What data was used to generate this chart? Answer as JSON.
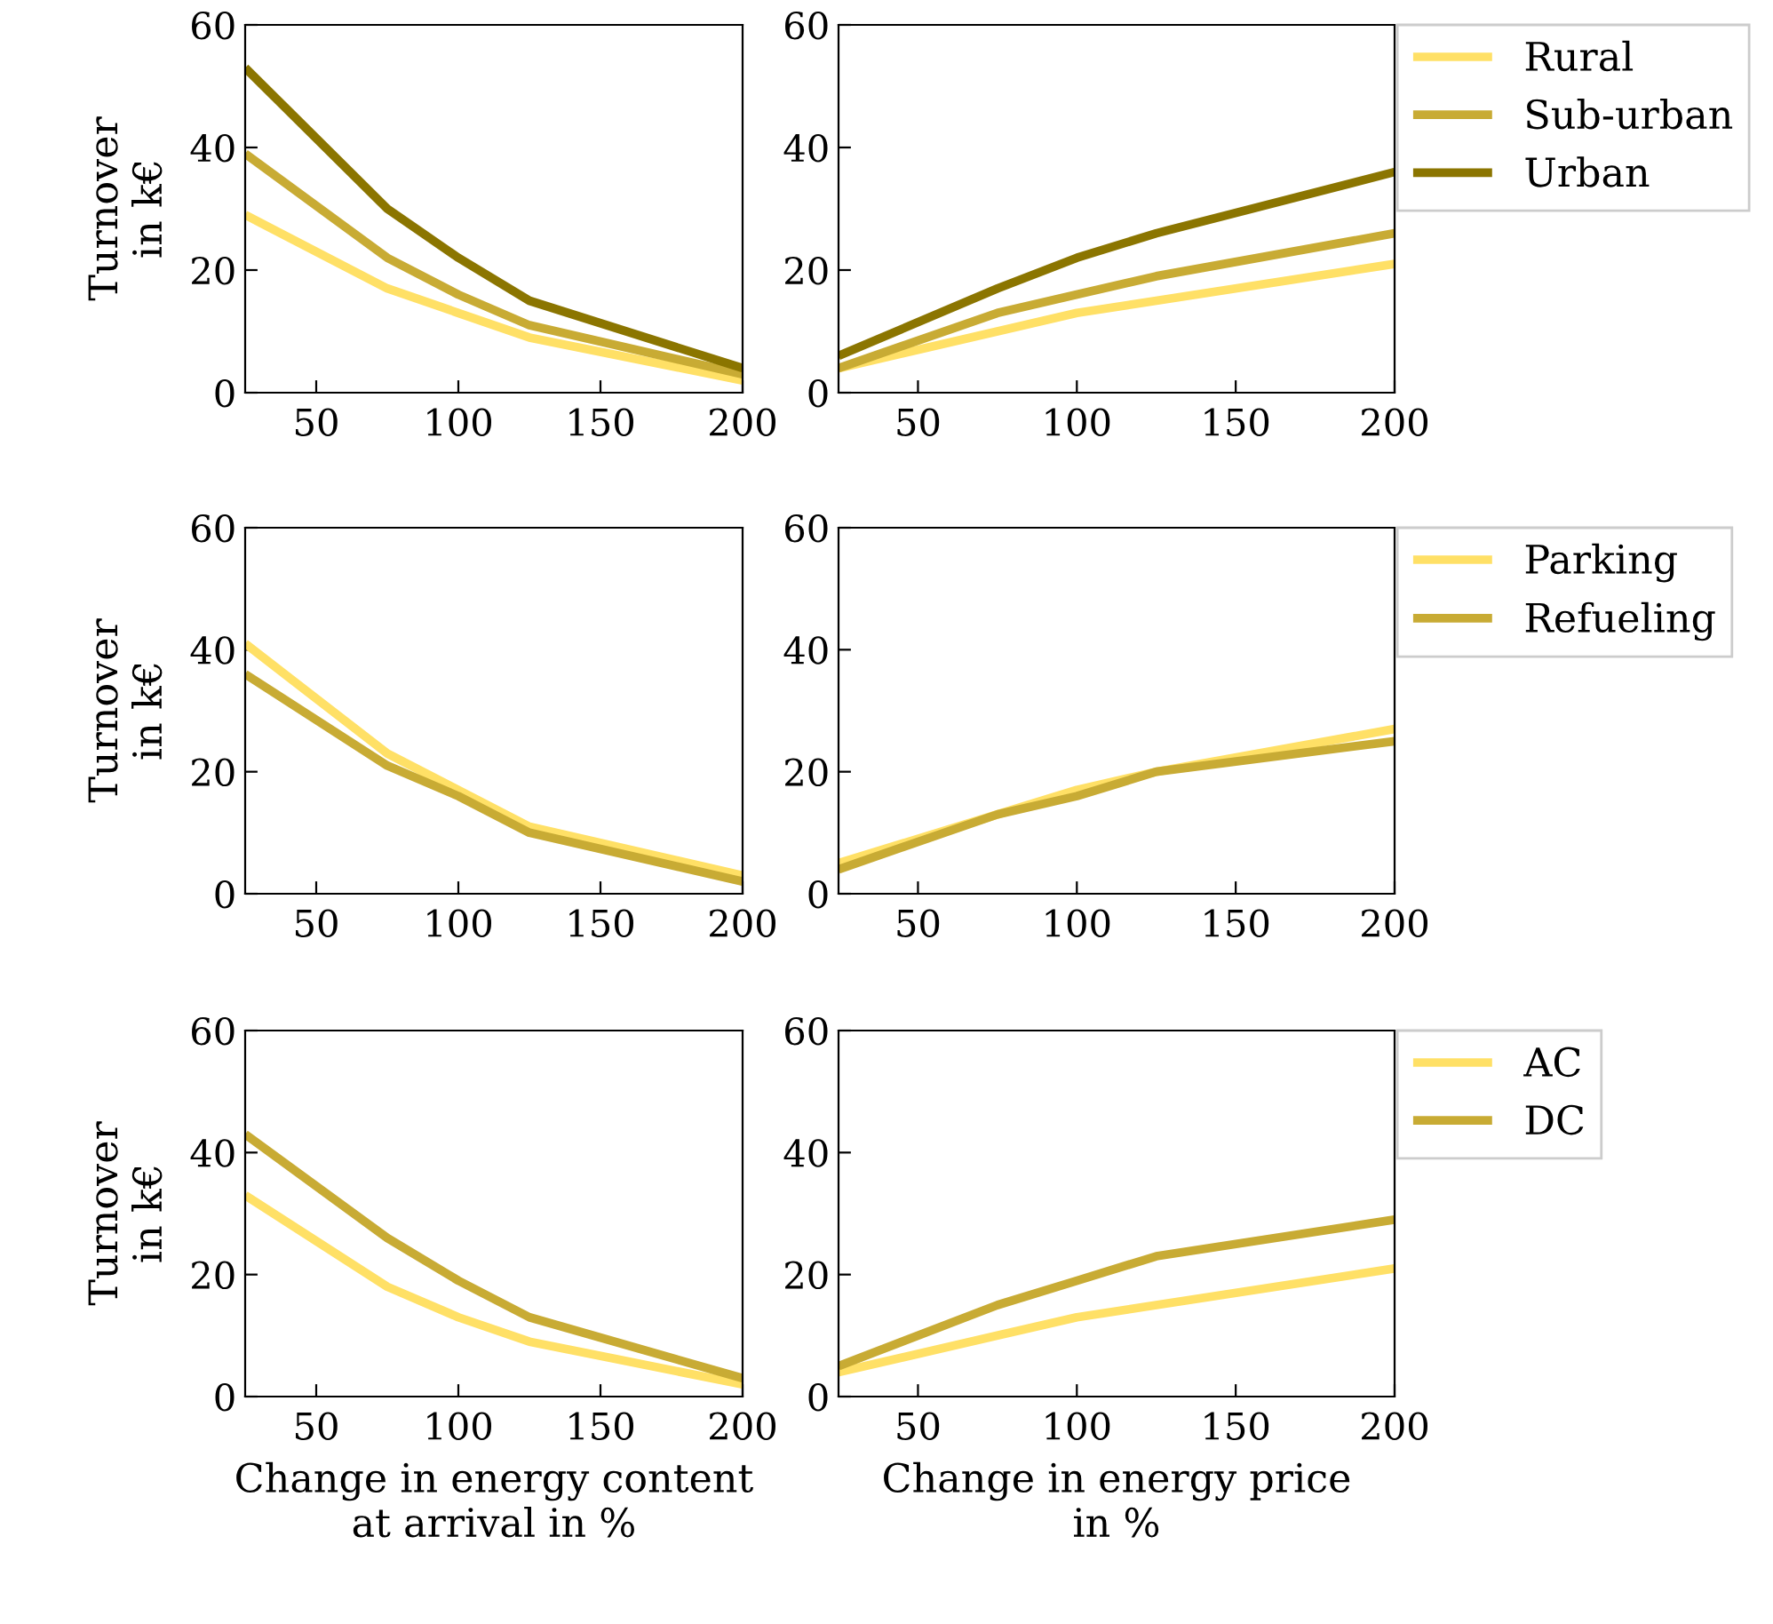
{
  "chart_data": [
    {
      "type": "line",
      "ylabel": "Turnover\nin k€",
      "x": [
        25,
        75,
        100,
        125,
        200
      ],
      "xlim": [
        25,
        200
      ],
      "xticks": [
        50,
        100,
        150,
        200
      ],
      "ylim": [
        0,
        60
      ],
      "yticks": [
        0,
        20,
        40,
        60
      ],
      "grid": false,
      "legend": false,
      "series": [
        {
          "color": "#ffe066",
          "values": [
            29,
            17,
            13,
            9,
            2
          ]
        },
        {
          "color": "#c8ab34",
          "values": [
            39,
            22,
            16,
            11,
            3
          ]
        },
        {
          "color": "#8b7500",
          "values": [
            53,
            30,
            22,
            15,
            4
          ]
        }
      ]
    },
    {
      "type": "line",
      "x": [
        25,
        75,
        100,
        125,
        200
      ],
      "xlim": [
        25,
        200
      ],
      "xticks": [
        50,
        100,
        150,
        200
      ],
      "ylim": [
        0,
        60
      ],
      "yticks": [
        0,
        20,
        40,
        60
      ],
      "grid": false,
      "legend": "right",
      "series": [
        {
          "name": "Rural",
          "color": "#ffe066",
          "values": [
            4,
            10,
            13,
            15,
            21
          ]
        },
        {
          "name": "Sub-urban",
          "color": "#c8ab34",
          "values": [
            4,
            13,
            16,
            19,
            26
          ]
        },
        {
          "name": "Urban",
          "color": "#8b7500",
          "values": [
            6,
            17,
            22,
            26,
            36
          ]
        }
      ]
    },
    {
      "type": "line",
      "ylabel": "Turnover\nin k€",
      "x": [
        25,
        75,
        100,
        125,
        200
      ],
      "xlim": [
        25,
        200
      ],
      "xticks": [
        50,
        100,
        150,
        200
      ],
      "ylim": [
        0,
        60
      ],
      "yticks": [
        0,
        20,
        40,
        60
      ],
      "grid": false,
      "legend": false,
      "series": [
        {
          "color": "#ffe066",
          "values": [
            41,
            23,
            17,
            11,
            3
          ]
        },
        {
          "color": "#c8ab34",
          "values": [
            36,
            21,
            16,
            10,
            2
          ]
        }
      ]
    },
    {
      "type": "line",
      "x": [
        25,
        75,
        100,
        125,
        200
      ],
      "xlim": [
        25,
        200
      ],
      "xticks": [
        50,
        100,
        150,
        200
      ],
      "ylim": [
        0,
        60
      ],
      "yticks": [
        0,
        20,
        40,
        60
      ],
      "grid": false,
      "legend": "right",
      "series": [
        {
          "name": "Parking",
          "color": "#ffe066",
          "values": [
            5,
            13,
            17,
            20,
            27
          ]
        },
        {
          "name": "Refueling",
          "color": "#c8ab34",
          "values": [
            4,
            13,
            16,
            20,
            25
          ]
        }
      ]
    },
    {
      "type": "line",
      "ylabel": "Turnover\nin k€",
      "xlabel": "Change in energy content\nat arrival in %",
      "x": [
        25,
        75,
        100,
        125,
        200
      ],
      "xlim": [
        25,
        200
      ],
      "xticks": [
        50,
        100,
        150,
        200
      ],
      "ylim": [
        0,
        60
      ],
      "yticks": [
        0,
        20,
        40,
        60
      ],
      "grid": false,
      "legend": false,
      "series": [
        {
          "color": "#ffe066",
          "values": [
            33,
            18,
            13,
            9,
            2
          ]
        },
        {
          "color": "#c8ab34",
          "values": [
            43,
            26,
            19,
            13,
            3
          ]
        }
      ]
    },
    {
      "type": "line",
      "xlabel": "Change in energy price\nin %",
      "x": [
        25,
        75,
        100,
        125,
        200
      ],
      "xlim": [
        25,
        200
      ],
      "xticks": [
        50,
        100,
        150,
        200
      ],
      "ylim": [
        0,
        60
      ],
      "yticks": [
        0,
        20,
        40,
        60
      ],
      "grid": false,
      "legend": "right",
      "series": [
        {
          "name": "AC",
          "color": "#ffe066",
          "values": [
            4,
            10,
            13,
            15,
            21
          ]
        },
        {
          "name": "DC",
          "color": "#c8ab34",
          "values": [
            5,
            15,
            19,
            23,
            29
          ]
        }
      ]
    }
  ]
}
